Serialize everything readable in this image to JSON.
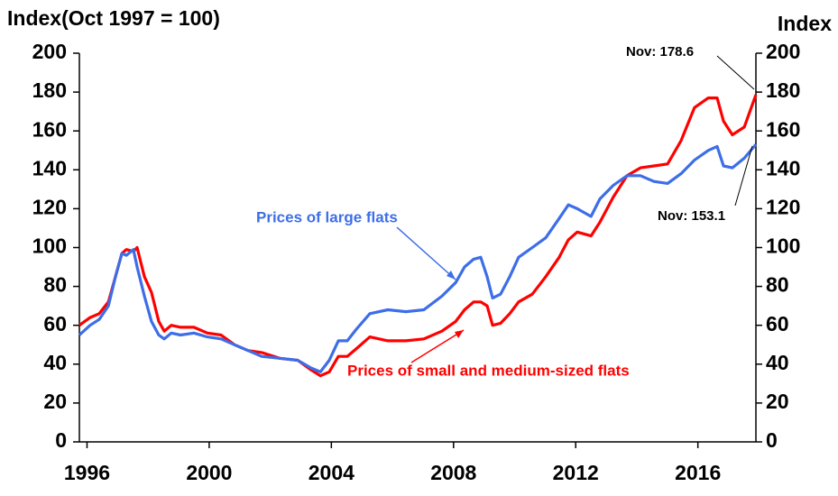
{
  "chart_data": {
    "type": "line",
    "y_label": "Index(Oct 1997 = 100)",
    "y2_label": "Index",
    "xlim": [
      1995.75,
      2017.9
    ],
    "xticks": [
      1996,
      2000,
      2004,
      2008,
      2012,
      2016
    ],
    "ylim": [
      0,
      200
    ],
    "yticks": [
      0,
      20,
      40,
      60,
      80,
      100,
      120,
      140,
      160,
      180,
      200
    ],
    "y2lim": [
      0,
      200
    ],
    "y2ticks": [
      0,
      20,
      40,
      60,
      80,
      100,
      120,
      140,
      160,
      180,
      200
    ],
    "x": [
      1995.75,
      1996.1,
      1996.4,
      1996.7,
      1996.93,
      1997.14,
      1997.29,
      1997.52,
      1997.64,
      1997.88,
      1998.11,
      1998.35,
      1998.53,
      1998.76,
      1999.06,
      1999.5,
      1999.94,
      2000.39,
      2000.83,
      2001.27,
      2001.72,
      2002.31,
      2002.9,
      2003.34,
      2003.64,
      2003.93,
      2004.23,
      2004.52,
      2004.82,
      2005.26,
      2005.85,
      2006.44,
      2007.03,
      2007.62,
      2008.07,
      2008.36,
      2008.66,
      2008.89,
      2009.1,
      2009.28,
      2009.54,
      2009.84,
      2010.13,
      2010.58,
      2011.02,
      2011.46,
      2011.76,
      2012.05,
      2012.5,
      2012.79,
      2013.23,
      2013.68,
      2014.12,
      2014.56,
      2015.01,
      2015.45,
      2015.89,
      2016.34,
      2016.63,
      2016.84,
      2017.13,
      2017.52,
      2017.9
    ],
    "series": [
      {
        "name": "Prices of large flats",
        "color": "#3d6ee8",
        "values": [
          55,
          60,
          63,
          70,
          85,
          97,
          96,
          99,
          90,
          75,
          62,
          55,
          53,
          56,
          55,
          56,
          54,
          53,
          50,
          47,
          44,
          43,
          42,
          38,
          36,
          42,
          52,
          52,
          58,
          66,
          68,
          67,
          68,
          75,
          82,
          90,
          94,
          95,
          85,
          74,
          76,
          85,
          95,
          100,
          105,
          115,
          122,
          120,
          116,
          125,
          132,
          137,
          137,
          134,
          133,
          138,
          145,
          150,
          152,
          142,
          141,
          146,
          153.1
        ]
      },
      {
        "name": "Prices of small and medium-sized flats",
        "color": "#ff0000",
        "values": [
          60,
          64,
          66,
          72,
          85,
          97,
          99,
          98,
          100,
          85,
          77,
          62,
          57,
          60,
          59,
          59,
          56,
          55,
          50,
          47,
          46,
          43,
          42,
          37,
          34,
          36,
          44,
          44,
          48,
          54,
          52,
          52,
          53,
          57,
          62,
          68,
          72,
          72,
          70,
          60,
          61,
          66,
          72,
          76,
          85,
          95,
          104,
          108,
          106,
          113,
          126,
          137,
          141,
          142,
          143,
          155,
          172,
          177,
          177,
          165,
          158,
          162,
          178.6
        ]
      }
    ],
    "annotations": [
      "Nov: 178.6",
      "Nov: 153.1"
    ]
  }
}
